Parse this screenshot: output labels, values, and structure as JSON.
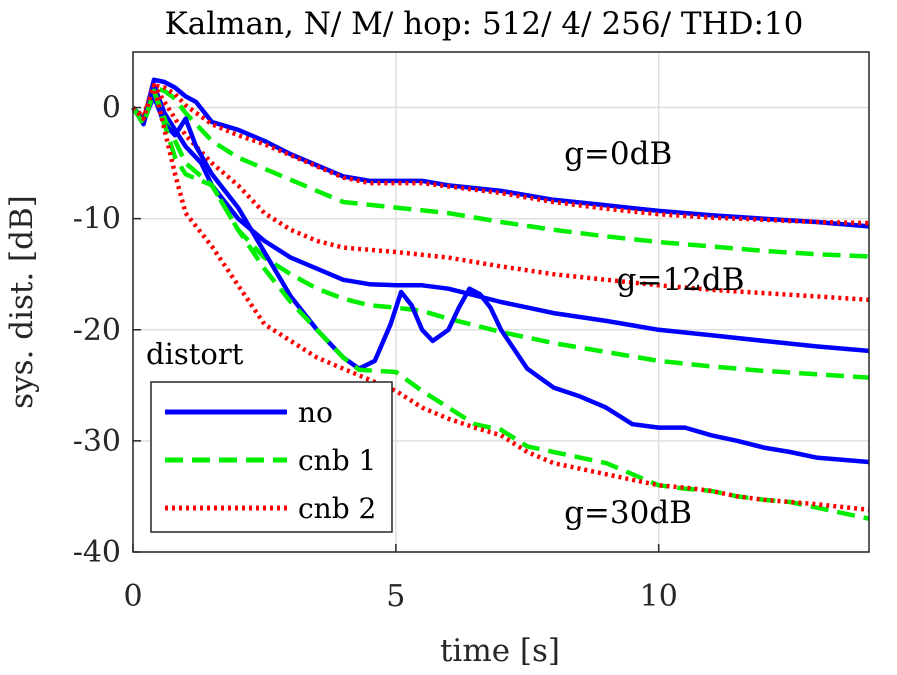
{
  "chart_data": {
    "type": "line",
    "title": "Kalman, N/ M/ hop: 512/ 4/ 256/ THD:10",
    "xlabel": "time [s]",
    "ylabel": "sys. dist. [dB]",
    "xlim": [
      0,
      14
    ],
    "ylim": [
      -40,
      5
    ],
    "xticks": [
      0,
      5,
      10
    ],
    "yticks": [
      0,
      -10,
      -20,
      -30,
      -40
    ],
    "xtick_labels": [
      "0",
      "5",
      "10"
    ],
    "ytick_labels": [
      "0",
      "-10",
      "-20",
      "-30",
      "-40"
    ],
    "grid": true,
    "annotations": [
      {
        "text": "g=0dB",
        "x": 8.2,
        "y": -5.1
      },
      {
        "text": "g=12dB",
        "x": 9.2,
        "y": -16.4
      },
      {
        "text": "g=30dB",
        "x": 8.2,
        "y": -37.4
      }
    ],
    "legend": {
      "title": "distort",
      "position": "bottom-left",
      "entries": [
        "no",
        "cnb 1",
        "cnb 2"
      ]
    },
    "series": [
      {
        "name": "no",
        "gain": "g=0dB",
        "color": "#0000ff",
        "style": "solid",
        "points": [
          [
            0,
            0
          ],
          [
            0.2,
            -1.2
          ],
          [
            0.4,
            2.5
          ],
          [
            0.6,
            2.3
          ],
          [
            0.8,
            1.8
          ],
          [
            1.0,
            1.0
          ],
          [
            1.2,
            0.5
          ],
          [
            1.5,
            -1.3
          ],
          [
            2.0,
            -2.0
          ],
          [
            2.5,
            -3.0
          ],
          [
            3.0,
            -4.2
          ],
          [
            3.5,
            -5.2
          ],
          [
            4.0,
            -6.2
          ],
          [
            4.5,
            -6.6
          ],
          [
            5.0,
            -6.6
          ],
          [
            5.5,
            -6.6
          ],
          [
            6.0,
            -7.0
          ],
          [
            7.0,
            -7.5
          ],
          [
            8.0,
            -8.3
          ],
          [
            9.0,
            -8.8
          ],
          [
            10.0,
            -9.3
          ],
          [
            11.0,
            -9.7
          ],
          [
            12.0,
            -10.0
          ],
          [
            13.0,
            -10.3
          ],
          [
            14.0,
            -10.7
          ]
        ]
      },
      {
        "name": "cnb 1",
        "gain": "g=0dB",
        "color": "#00ee00",
        "style": "dashed",
        "points": [
          [
            0,
            0
          ],
          [
            0.2,
            -1.0
          ],
          [
            0.4,
            1.8
          ],
          [
            0.6,
            1.5
          ],
          [
            0.8,
            0.8
          ],
          [
            1.0,
            -0.5
          ],
          [
            1.5,
            -3.0
          ],
          [
            2.0,
            -4.5
          ],
          [
            2.5,
            -5.5
          ],
          [
            3.0,
            -6.5
          ],
          [
            3.5,
            -7.5
          ],
          [
            4.0,
            -8.5
          ],
          [
            5.0,
            -9.0
          ],
          [
            6.0,
            -9.5
          ],
          [
            7.0,
            -10.3
          ],
          [
            8.0,
            -11.0
          ],
          [
            9.0,
            -11.6
          ],
          [
            10.0,
            -12.1
          ],
          [
            11.0,
            -12.5
          ],
          [
            12.0,
            -12.9
          ],
          [
            13.0,
            -13.2
          ],
          [
            14.0,
            -13.4
          ]
        ]
      },
      {
        "name": "cnb 2",
        "gain": "g=0dB",
        "color": "#ff0000",
        "style": "dotted",
        "points": [
          [
            0,
            0
          ],
          [
            0.2,
            -0.8
          ],
          [
            0.4,
            2.0
          ],
          [
            0.6,
            1.8
          ],
          [
            0.8,
            1.2
          ],
          [
            1.0,
            0.2
          ],
          [
            1.5,
            -1.5
          ],
          [
            2.0,
            -2.5
          ],
          [
            2.5,
            -3.3
          ],
          [
            3.0,
            -4.3
          ],
          [
            3.5,
            -5.3
          ],
          [
            4.0,
            -6.3
          ],
          [
            4.5,
            -6.8
          ],
          [
            5.0,
            -6.8
          ],
          [
            5.5,
            -6.8
          ],
          [
            6.0,
            -7.1
          ],
          [
            7.0,
            -7.7
          ],
          [
            8.0,
            -8.5
          ],
          [
            9.0,
            -9.1
          ],
          [
            10.0,
            -9.6
          ],
          [
            11.0,
            -9.9
          ],
          [
            12.0,
            -10.1
          ],
          [
            13.0,
            -10.3
          ],
          [
            14.0,
            -10.4
          ]
        ]
      },
      {
        "name": "no",
        "gain": "g=12dB",
        "color": "#0000ff",
        "style": "solid",
        "points": [
          [
            0,
            0
          ],
          [
            0.2,
            -1.5
          ],
          [
            0.4,
            2.0
          ],
          [
            0.6,
            -0.5
          ],
          [
            0.8,
            -2.0
          ],
          [
            1.0,
            -3.5
          ],
          [
            1.3,
            -5.0
          ],
          [
            1.5,
            -7.0
          ],
          [
            2.0,
            -10.0
          ],
          [
            2.5,
            -12.0
          ],
          [
            3.0,
            -13.5
          ],
          [
            3.5,
            -14.5
          ],
          [
            4.0,
            -15.5
          ],
          [
            4.5,
            -15.9
          ],
          [
            5.0,
            -16.0
          ],
          [
            5.5,
            -16.0
          ],
          [
            6.0,
            -16.3
          ],
          [
            7.0,
            -17.5
          ],
          [
            8.0,
            -18.5
          ],
          [
            9.0,
            -19.2
          ],
          [
            10.0,
            -20.0
          ],
          [
            11.0,
            -20.5
          ],
          [
            12.0,
            -21.0
          ],
          [
            13.0,
            -21.5
          ],
          [
            14.0,
            -21.9
          ]
        ]
      },
      {
        "name": "cnb 1",
        "gain": "g=12dB",
        "color": "#00ee00",
        "style": "dashed",
        "points": [
          [
            0,
            0
          ],
          [
            0.2,
            -1.5
          ],
          [
            0.4,
            1.5
          ],
          [
            0.6,
            -1.0
          ],
          [
            0.8,
            -3.0
          ],
          [
            1.0,
            -5.0
          ],
          [
            1.5,
            -7.0
          ],
          [
            2.0,
            -11.0
          ],
          [
            2.5,
            -13.5
          ],
          [
            3.0,
            -15.0
          ],
          [
            3.5,
            -16.3
          ],
          [
            4.0,
            -17.2
          ],
          [
            4.5,
            -17.8
          ],
          [
            5.0,
            -18.0
          ],
          [
            5.5,
            -18.3
          ],
          [
            6.0,
            -19.0
          ],
          [
            7.0,
            -20.2
          ],
          [
            8.0,
            -21.2
          ],
          [
            9.0,
            -22.0
          ],
          [
            10.0,
            -22.8
          ],
          [
            11.0,
            -23.3
          ],
          [
            12.0,
            -23.7
          ],
          [
            13.0,
            -24.0
          ],
          [
            14.0,
            -24.3
          ]
        ]
      },
      {
        "name": "cnb 2",
        "gain": "g=12dB",
        "color": "#ff0000",
        "style": "dotted",
        "points": [
          [
            0,
            0
          ],
          [
            0.2,
            -1.0
          ],
          [
            0.4,
            2.0
          ],
          [
            0.6,
            0.5
          ],
          [
            0.8,
            -1.0
          ],
          [
            1.0,
            -2.5
          ],
          [
            1.5,
            -5.0
          ],
          [
            2.0,
            -7.0
          ],
          [
            2.5,
            -9.5
          ],
          [
            3.0,
            -11.0
          ],
          [
            3.5,
            -12.0
          ],
          [
            4.0,
            -12.6
          ],
          [
            5.0,
            -13.0
          ],
          [
            6.0,
            -13.5
          ],
          [
            7.0,
            -14.3
          ],
          [
            8.0,
            -15.0
          ],
          [
            9.0,
            -15.5
          ],
          [
            10.0,
            -16.0
          ],
          [
            11.0,
            -16.4
          ],
          [
            12.0,
            -16.7
          ],
          [
            13.0,
            -17.0
          ],
          [
            14.0,
            -17.3
          ]
        ]
      },
      {
        "name": "no",
        "gain": "g=30dB",
        "color": "#0000ff",
        "style": "solid",
        "points": [
          [
            0,
            0
          ],
          [
            0.2,
            -1.2
          ],
          [
            0.4,
            1.0
          ],
          [
            0.6,
            -1.5
          ],
          [
            0.8,
            -2.5
          ],
          [
            1.0,
            -1.0
          ],
          [
            1.2,
            -3.5
          ],
          [
            1.5,
            -6.0
          ],
          [
            2.0,
            -9.0
          ],
          [
            2.5,
            -13.0
          ],
          [
            3.0,
            -17.0
          ],
          [
            3.5,
            -20.0
          ],
          [
            4.0,
            -22.5
          ],
          [
            4.3,
            -23.5
          ],
          [
            4.6,
            -22.8
          ],
          [
            4.9,
            -19.5
          ],
          [
            5.1,
            -16.6
          ],
          [
            5.3,
            -17.8
          ],
          [
            5.5,
            -20.0
          ],
          [
            5.7,
            -21.0
          ],
          [
            6.0,
            -20.0
          ],
          [
            6.2,
            -18.0
          ],
          [
            6.4,
            -16.3
          ],
          [
            6.6,
            -16.8
          ],
          [
            6.8,
            -18.0
          ],
          [
            7.0,
            -20.0
          ],
          [
            7.5,
            -23.5
          ],
          [
            8.0,
            -25.2
          ],
          [
            8.5,
            -26.0
          ],
          [
            9.0,
            -27.0
          ],
          [
            9.5,
            -28.5
          ],
          [
            10.0,
            -28.8
          ],
          [
            10.5,
            -28.8
          ],
          [
            11.0,
            -29.5
          ],
          [
            11.5,
            -30.0
          ],
          [
            12.0,
            -30.6
          ],
          [
            12.5,
            -31.0
          ],
          [
            13.0,
            -31.5
          ],
          [
            14.0,
            -31.9
          ]
        ]
      },
      {
        "name": "cnb 1",
        "gain": "g=30dB",
        "color": "#00ee00",
        "style": "dashed",
        "points": [
          [
            0,
            0
          ],
          [
            0.2,
            -1.5
          ],
          [
            0.4,
            1.5
          ],
          [
            0.6,
            -1.5
          ],
          [
            0.8,
            -4.5
          ],
          [
            1.0,
            -6.0
          ],
          [
            1.5,
            -7.0
          ],
          [
            2.0,
            -11.0
          ],
          [
            2.5,
            -14.5
          ],
          [
            3.0,
            -17.5
          ],
          [
            3.5,
            -20.0
          ],
          [
            4.0,
            -22.5
          ],
          [
            4.3,
            -23.6
          ],
          [
            5.0,
            -23.8
          ],
          [
            5.5,
            -25.5
          ],
          [
            6.0,
            -27.0
          ],
          [
            6.5,
            -28.5
          ],
          [
            7.0,
            -29.0
          ],
          [
            7.5,
            -30.5
          ],
          [
            8.0,
            -31.0
          ],
          [
            8.5,
            -31.5
          ],
          [
            9.0,
            -32.0
          ],
          [
            9.5,
            -33.0
          ],
          [
            10.0,
            -34.0
          ],
          [
            10.5,
            -34.3
          ],
          [
            11.0,
            -34.5
          ],
          [
            11.5,
            -35.0
          ],
          [
            12.0,
            -35.3
          ],
          [
            12.5,
            -35.5
          ],
          [
            13.0,
            -36.0
          ],
          [
            14.0,
            -37.0
          ]
        ]
      },
      {
        "name": "cnb 2",
        "gain": "g=30dB",
        "color": "#ff0000",
        "style": "dotted",
        "points": [
          [
            0,
            0
          ],
          [
            0.2,
            -1.0
          ],
          [
            0.4,
            2.0
          ],
          [
            0.6,
            -2.0
          ],
          [
            0.8,
            -6.0
          ],
          [
            1.0,
            -9.5
          ],
          [
            1.5,
            -12.5
          ],
          [
            2.0,
            -16.0
          ],
          [
            2.5,
            -19.5
          ],
          [
            3.0,
            -21.0
          ],
          [
            3.5,
            -22.5
          ],
          [
            4.0,
            -23.5
          ],
          [
            4.5,
            -24.5
          ],
          [
            5.0,
            -25.5
          ],
          [
            5.5,
            -27.0
          ],
          [
            6.0,
            -28.0
          ],
          [
            6.5,
            -28.8
          ],
          [
            7.0,
            -29.5
          ],
          [
            7.5,
            -31.0
          ],
          [
            8.0,
            -32.0
          ],
          [
            8.5,
            -32.5
          ],
          [
            9.0,
            -33.0
          ],
          [
            9.5,
            -33.5
          ],
          [
            10.0,
            -34.0
          ],
          [
            10.5,
            -34.2
          ],
          [
            11.0,
            -34.5
          ],
          [
            11.5,
            -35.0
          ],
          [
            12.0,
            -35.3
          ],
          [
            12.5,
            -35.5
          ],
          [
            13.0,
            -35.7
          ],
          [
            14.0,
            -36.2
          ]
        ]
      }
    ]
  }
}
